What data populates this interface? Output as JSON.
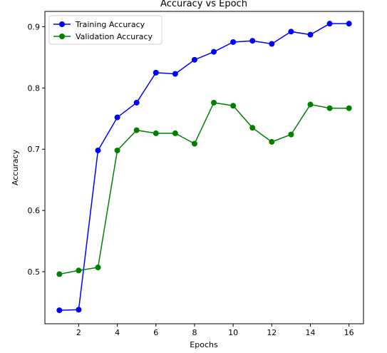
{
  "chart_data": {
    "type": "line",
    "title": "Accuracy vs Epoch",
    "xlabel": "Epochs",
    "ylabel": "Accuracy",
    "xlim": [
      0.25,
      16.75
    ],
    "ylim": [
      0.415,
      0.925
    ],
    "xticks": [
      2,
      4,
      6,
      8,
      10,
      12,
      14,
      16
    ],
    "yticks": [
      0.5,
      0.6,
      0.7,
      0.8,
      0.9
    ],
    "grid": false,
    "legend_position": "upper-left",
    "x": [
      1,
      2,
      3,
      4,
      5,
      6,
      7,
      8,
      9,
      10,
      11,
      12,
      13,
      14,
      15,
      16
    ],
    "series": [
      {
        "name": "Training Accuracy",
        "color": "#0000ff",
        "marker": "circle",
        "values": [
          0.437,
          0.438,
          0.698,
          0.752,
          0.776,
          0.825,
          0.823,
          0.846,
          0.859,
          0.875,
          0.877,
          0.872,
          0.892,
          0.887,
          0.905,
          0.905
        ]
      },
      {
        "name": "Validation Accuracy",
        "color": "#008000",
        "marker": "circle",
        "values": [
          0.496,
          0.502,
          0.507,
          0.698,
          0.731,
          0.726,
          0.726,
          0.709,
          0.776,
          0.771,
          0.735,
          0.712,
          0.724,
          0.773,
          0.767,
          0.767
        ]
      }
    ]
  }
}
